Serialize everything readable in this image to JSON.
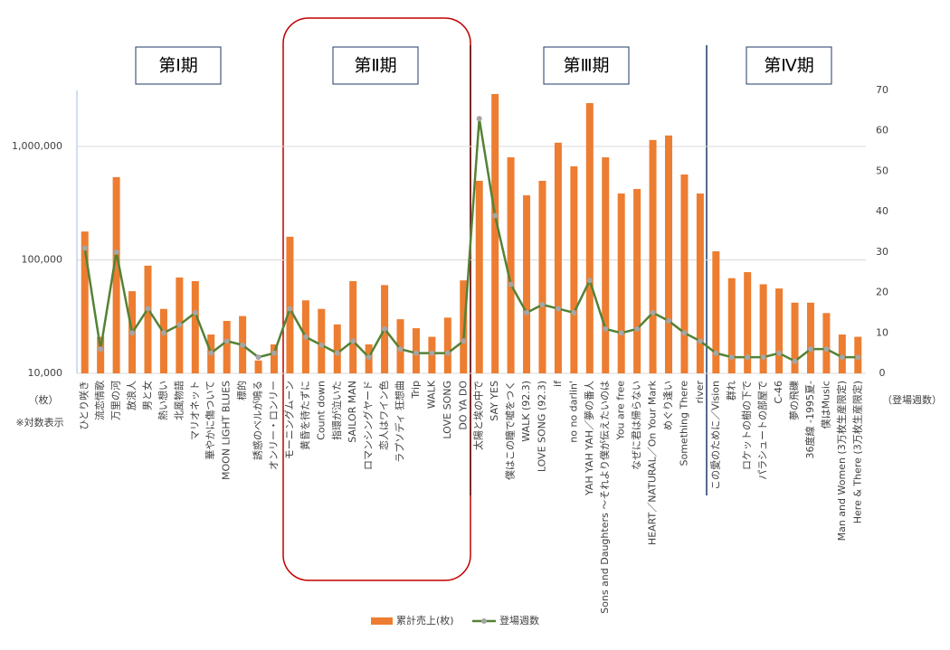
{
  "chart_data": {
    "type": "bar_line",
    "categories": [
      "ひとり咲き",
      "流恋情歌",
      "万里の河",
      "放浪人",
      "男と女",
      "熱い想い",
      "北風物語",
      "マリオネット",
      "華やかに傷ついて",
      "MOON LIGHT BLUES",
      "標的",
      "誘惑のベルが鳴る",
      "オンリー・ロンリー",
      "モーニングムーン",
      "黄昏を待たずに",
      "Count down",
      "指環が泣いた",
      "SAILOR MAN",
      "ロマンシングヤード",
      "恋人はワイン色",
      "ラプソディ 狂想曲",
      "Trip",
      "WALK",
      "LOVE SONG",
      "DO YA DO",
      "太陽と埃の中で",
      "SAY YES",
      "僕はこの瞳で嘘をつく",
      "WALK (92.3)",
      "LOVE SONG (92.3)",
      "if",
      "no no darlin'",
      "YAH YAH YAH／夢の番人",
      "Sons and Daughters ～それより僕が伝えたいのは",
      "You are free",
      "なぜに君は帰らない",
      "HEART／NATURAL／On Your Mark",
      "めぐり逢い",
      "Something There",
      "river",
      "この愛のために／Vision",
      "群れ",
      "ロケットの樹の下で",
      "パラシュートの部屋で",
      "C-46",
      "夢の飛礫",
      "36度線 -1995夏-",
      "僕はMusic",
      "Man and Women (3万枚生産限定)",
      "Here & There (3万枚生産限定)"
    ],
    "series": [
      {
        "name": "累計売上(枚)",
        "color": "#ed7d31",
        "values": [
          178000,
          21000,
          536000,
          53000,
          89000,
          37000,
          70000,
          65000,
          22000,
          29000,
          32000,
          13000,
          18000,
          160000,
          44000,
          37000,
          27000,
          65000,
          18000,
          60000,
          30000,
          25000,
          21000,
          31000,
          66000,
          498000,
          2900000,
          802000,
          371000,
          498000,
          1080000,
          668000,
          2410000,
          802000,
          385000,
          422000,
          1140000,
          1250000,
          566000,
          385000,
          119000,
          69000,
          78000,
          61000,
          56000,
          42000,
          42000,
          34000,
          22000,
          21000
        ]
      },
      {
        "name": "登場週数",
        "color": "#548235",
        "marker_color": "#a5a5a5",
        "axis": "y2",
        "values": [
          31,
          6,
          30,
          10,
          16,
          10,
          12,
          15,
          5,
          8,
          7,
          4,
          5,
          16,
          9,
          7,
          5,
          8,
          4,
          11,
          6,
          5,
          5,
          5,
          8,
          63,
          39,
          22,
          15,
          17,
          16,
          15,
          23,
          11,
          10,
          11,
          15,
          13,
          10,
          8,
          5,
          4,
          4,
          4,
          5,
          3,
          6,
          6,
          4,
          4
        ]
      }
    ],
    "ylog": true,
    "ylim": [
      10000,
      3120000
    ],
    "yticks": [
      {
        "value": 10000,
        "label": "10,000"
      },
      {
        "value": 100000,
        "label": "100,000"
      },
      {
        "value": 1000000,
        "label": "1,000,000"
      }
    ],
    "y2lim": [
      0,
      70
    ],
    "y2ticks": [
      0,
      10,
      20,
      30,
      40,
      50,
      60,
      70
    ],
    "grid": true,
    "left_unit": "（枚）",
    "log_note": "※対数表示",
    "right_unit": "（登場週数）",
    "periods": [
      "第Ⅰ期",
      "第Ⅱ期",
      "第Ⅲ期",
      "第Ⅳ期"
    ]
  }
}
